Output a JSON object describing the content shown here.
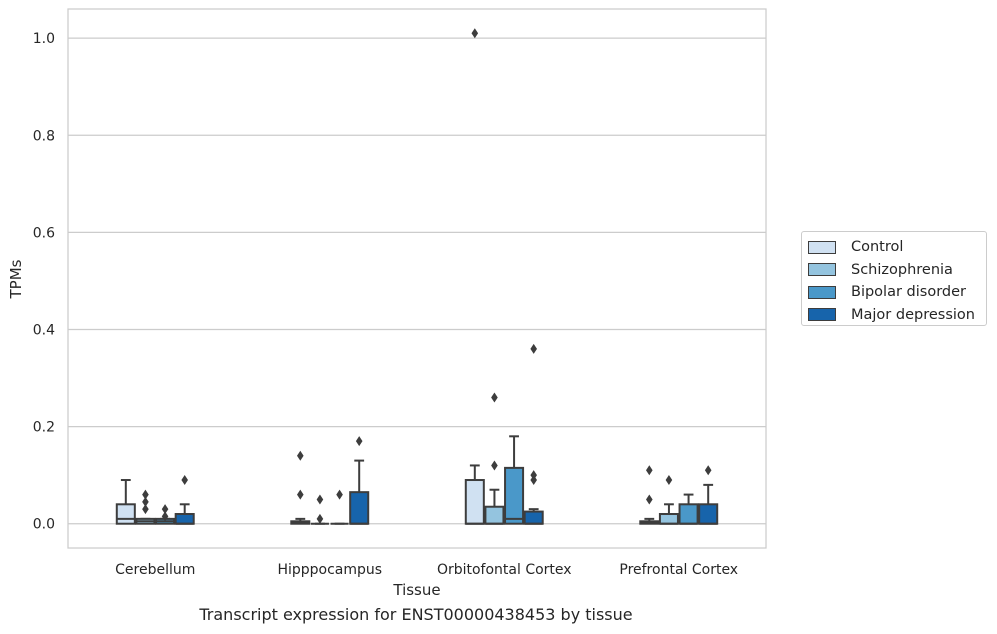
{
  "chart_data": {
    "type": "box",
    "xlabel": "Tissue",
    "ylabel": "TPMs",
    "caption": "Transcript expression for ENST00000438453 by tissue",
    "categories": [
      "Cerebellum",
      "Hipppocampus",
      "Orbitofontal Cortex",
      "Prefrontal Cortex"
    ],
    "ylim": [
      -0.05,
      1.06
    ],
    "yticks": [
      0.0,
      0.2,
      0.4,
      0.6,
      0.8,
      1.0
    ],
    "grid": "horizontal",
    "legend_position": "right",
    "series": [
      {
        "name": "Control",
        "color": "#d0e1f2",
        "boxes": [
          {
            "q1": 0.0,
            "median": 0.01,
            "q3": 0.04,
            "whisker_low": 0.0,
            "whisker_high": 0.09,
            "outliers": []
          },
          {
            "q1": 0.0,
            "median": 0.002,
            "q3": 0.005,
            "whisker_low": 0.0,
            "whisker_high": 0.01,
            "outliers": [
              0.06,
              0.14
            ]
          },
          {
            "q1": 0.0,
            "median": 0.0,
            "q3": 0.09,
            "whisker_low": 0.0,
            "whisker_high": 0.12,
            "outliers": [
              1.01
            ]
          },
          {
            "q1": 0.0,
            "median": 0.002,
            "q3": 0.005,
            "whisker_low": 0.0,
            "whisker_high": 0.01,
            "outliers": [
              0.05,
              0.11
            ]
          }
        ]
      },
      {
        "name": "Schizophrenia",
        "color": "#94c4df",
        "boxes": [
          {
            "q1": 0.0,
            "median": 0.005,
            "q3": 0.01,
            "whisker_low": 0.0,
            "whisker_high": 0.01,
            "outliers": [
              0.03,
              0.045,
              0.06
            ]
          },
          {
            "q1": 0.0,
            "median": 0.0,
            "q3": 0.0,
            "whisker_low": 0.0,
            "whisker_high": 0.0,
            "outliers": [
              0.01,
              0.05
            ]
          },
          {
            "q1": 0.0,
            "median": 0.0,
            "q3": 0.035,
            "whisker_low": 0.0,
            "whisker_high": 0.07,
            "outliers": [
              0.12,
              0.26
            ]
          },
          {
            "q1": 0.0,
            "median": 0.0,
            "q3": 0.02,
            "whisker_low": 0.0,
            "whisker_high": 0.04,
            "outliers": [
              0.09
            ]
          }
        ]
      },
      {
        "name": "Bipolar disorder",
        "color": "#4a98c9",
        "boxes": [
          {
            "q1": 0.0,
            "median": 0.005,
            "q3": 0.01,
            "whisker_low": 0.0,
            "whisker_high": 0.01,
            "outliers": [
              0.015,
              0.03
            ]
          },
          {
            "q1": 0.0,
            "median": 0.0,
            "q3": 0.0,
            "whisker_low": 0.0,
            "whisker_high": 0.0,
            "outliers": [
              0.06
            ]
          },
          {
            "q1": 0.0,
            "median": 0.01,
            "q3": 0.115,
            "whisker_low": 0.0,
            "whisker_high": 0.18,
            "outliers": []
          },
          {
            "q1": 0.0,
            "median": 0.0,
            "q3": 0.04,
            "whisker_low": 0.0,
            "whisker_high": 0.06,
            "outliers": []
          }
        ]
      },
      {
        "name": "Major depression",
        "color": "#1764ab",
        "boxes": [
          {
            "q1": 0.0,
            "median": 0.0,
            "q3": 0.02,
            "whisker_low": 0.0,
            "whisker_high": 0.04,
            "outliers": [
              0.09
            ]
          },
          {
            "q1": 0.0,
            "median": 0.0,
            "q3": 0.065,
            "whisker_low": 0.0,
            "whisker_high": 0.13,
            "outliers": [
              0.17
            ]
          },
          {
            "q1": 0.0,
            "median": 0.0,
            "q3": 0.025,
            "whisker_low": 0.0,
            "whisker_high": 0.03,
            "outliers": [
              0.09,
              0.1,
              0.36
            ]
          },
          {
            "q1": 0.0,
            "median": 0.0,
            "q3": 0.04,
            "whisker_low": 0.0,
            "whisker_high": 0.08,
            "outliers": [
              0.11
            ]
          }
        ]
      }
    ]
  }
}
